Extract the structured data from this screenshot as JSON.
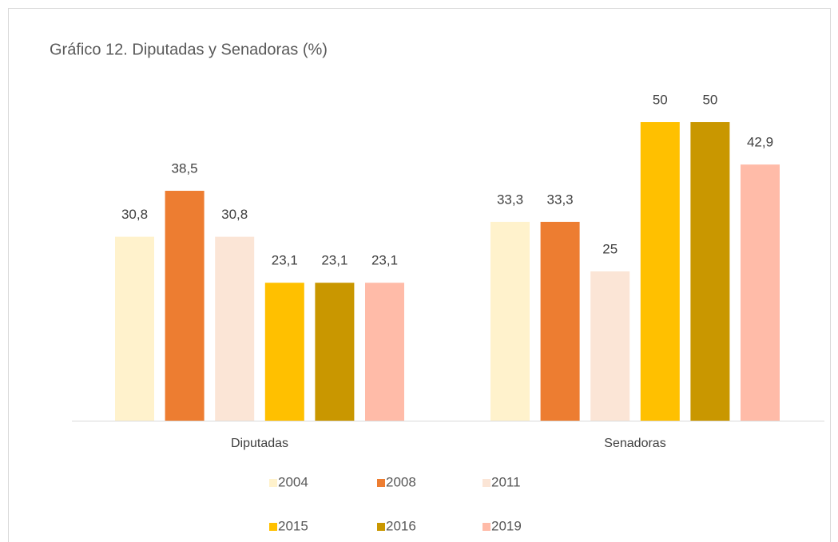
{
  "chart_data": {
    "type": "bar",
    "title": "Gráfico 12. Diputadas y Senadoras (%)",
    "categories": [
      "Diputadas",
      "Senadoras"
    ],
    "series": [
      {
        "name": "2004",
        "color": "#FFF2CC",
        "values": [
          30.8,
          33.3
        ],
        "value_labels": [
          "30,8",
          "33,3"
        ]
      },
      {
        "name": "2008",
        "color": "#ED7D31",
        "values": [
          38.5,
          33.3
        ],
        "value_labels": [
          "38,5",
          "33,3"
        ]
      },
      {
        "name": "2011",
        "color": "#FBE5D6",
        "values": [
          30.8,
          25
        ],
        "value_labels": [
          "30,8",
          "25"
        ]
      },
      {
        "name": "2015",
        "color": "#FFC000",
        "values": [
          23.1,
          50
        ],
        "value_labels": [
          "23,1",
          "50"
        ]
      },
      {
        "name": "2016",
        "color": "#C99700",
        "values": [
          23.1,
          50
        ],
        "value_labels": [
          "23,1",
          "50"
        ]
      },
      {
        "name": "2019",
        "color": "#FFBBA8",
        "values": [
          23.1,
          42.9
        ],
        "value_labels": [
          "23,1",
          "42,9"
        ]
      }
    ],
    "ylim": [
      0,
      50
    ],
    "legend": "bottom"
  }
}
